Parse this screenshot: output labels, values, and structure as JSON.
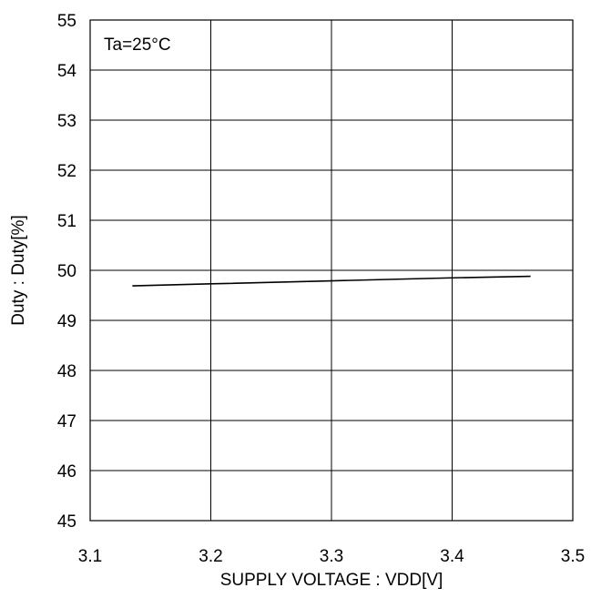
{
  "chart_data": {
    "type": "line",
    "title": "",
    "xlabel": "SUPPLY VOLTAGE : VDD[V]",
    "ylabel": "Duty : Duty[%]",
    "xlim": [
      3.1,
      3.5
    ],
    "ylim": [
      45,
      55
    ],
    "xticks": [
      3.1,
      3.2,
      3.3,
      3.4,
      3.5
    ],
    "yticks": [
      45,
      46,
      47,
      48,
      49,
      50,
      51,
      52,
      53,
      54,
      55
    ],
    "xtick_labels": [
      "3.1",
      "3.2",
      "3.3",
      "3.4",
      "3.5"
    ],
    "ytick_labels": [
      "45",
      "46",
      "47",
      "48",
      "49",
      "50",
      "51",
      "52",
      "53",
      "54",
      "55"
    ],
    "grid": true,
    "annotation": "Ta=25°C",
    "series": [
      {
        "x": [
          3.135,
          3.2,
          3.3,
          3.4,
          3.465
        ],
        "y": [
          49.69,
          49.73,
          49.79,
          49.85,
          49.88
        ]
      }
    ],
    "colors": {
      "line": "#000000",
      "grid": "#000000",
      "frame": "#000000",
      "background": "#ffffff"
    }
  }
}
